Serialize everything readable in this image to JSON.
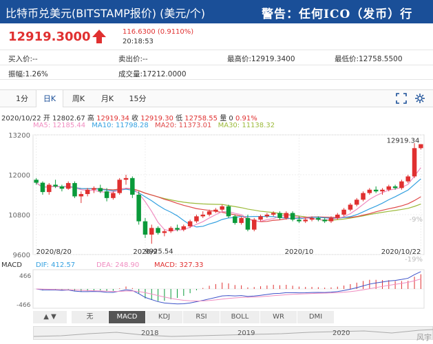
{
  "header": {
    "title": "比特币兑美元(BITSTAMP报价) (美元/个)",
    "warning": "警告：任何ICO（发币）行"
  },
  "quote": {
    "price": "12919.3000",
    "change": "116.6300 (0.9110%)",
    "time": "20:18:53"
  },
  "stats": {
    "buy": "买入价:--",
    "sell": "卖出价:--",
    "high": "最高价:12919.3400",
    "low": "最低价:12758.5500",
    "amplitude": "振幅:1.26%",
    "volume": "成交量:17212.0000"
  },
  "tabs": [
    "1分",
    "日K",
    "周K",
    "月K",
    "15分"
  ],
  "active_tab": "日K",
  "ohlc": {
    "date": "2020/10/22",
    "open_label": "开",
    "open": "12802.67",
    "high_label": "高",
    "high": "12919.34",
    "close_label": "收",
    "close": "12919.30",
    "low_label": "低",
    "low": "12758.55",
    "vol_label": "量",
    "vol": "0",
    "pct": "0.91%"
  },
  "ma": {
    "ma5": "MA5: 12185.44",
    "ma10": "MA10: 11798.28",
    "ma20": "MA20: 11373.01",
    "ma30": "MA30: 11138.32"
  },
  "macd": {
    "title": "MACD",
    "dif": "DIF: 412.57",
    "dea": "DEA: 248.90",
    "macd": "MACD: 327.33",
    "top": "466",
    "bottom": "-466"
  },
  "bottom_tabs": [
    "无",
    "MACD",
    "KDJ",
    "RSI",
    "BOLL",
    "WR",
    "DMI"
  ],
  "active_bottom": "MACD",
  "timeline_years": [
    "2018",
    "2019",
    "2020"
  ],
  "watermark": "风宇",
  "colors": {
    "up": "#e03030",
    "down": "#0a9a3a",
    "ma5": "#f08cc0",
    "ma10": "#33a0e0",
    "ma20": "#e04848",
    "ma30": "#9cba3a",
    "header": "#1a4f98"
  },
  "chart_data": {
    "type": "candlestick",
    "title": "",
    "ylabel": "",
    "ylim": [
      9600,
      13200
    ],
    "y_ticks": [
      "13200",
      "12000",
      "10800",
      "9600"
    ],
    "right_ticks": [
      "-9%",
      "-19%"
    ],
    "x_labels": [
      "2020/8/20",
      "2020/9",
      "2020/10",
      "2020/10/22"
    ],
    "annotations": [
      {
        "label": "12919.34",
        "value": 12919.34
      },
      {
        "label": "9925.54",
        "value": 9925.54
      }
    ],
    "candles": [
      [
        11850,
        11900,
        11700,
        11760
      ],
      [
        11760,
        11800,
        11400,
        11480
      ],
      [
        11480,
        11750,
        11400,
        11700
      ],
      [
        11700,
        11850,
        11600,
        11650
      ],
      [
        11650,
        11700,
        11500,
        11580
      ],
      [
        11580,
        11800,
        11550,
        11750
      ],
      [
        11750,
        11800,
        11300,
        11350
      ],
      [
        11350,
        11500,
        11150,
        11420
      ],
      [
        11420,
        11600,
        11350,
        11550
      ],
      [
        11550,
        11650,
        11450,
        11600
      ],
      [
        11600,
        11700,
        11450,
        11500
      ],
      [
        11500,
        11600,
        11200,
        11300
      ],
      [
        11300,
        11500,
        11250,
        11450
      ],
      [
        11450,
        11900,
        11400,
        11850
      ],
      [
        11850,
        12000,
        11700,
        11900
      ],
      [
        11900,
        11950,
        11300,
        11400
      ],
      [
        11400,
        11500,
        10500,
        10600
      ],
      [
        10600,
        10700,
        10100,
        10200
      ],
      [
        10200,
        10500,
        9925,
        10400
      ],
      [
        10400,
        10450,
        10200,
        10250
      ],
      [
        10250,
        10350,
        10150,
        10300
      ],
      [
        10300,
        10450,
        10250,
        10400
      ],
      [
        10400,
        10500,
        10300,
        10350
      ],
      [
        10350,
        10500,
        10300,
        10450
      ],
      [
        10450,
        10650,
        10400,
        10600
      ],
      [
        10600,
        10800,
        10550,
        10750
      ],
      [
        10750,
        10900,
        10700,
        10800
      ],
      [
        10800,
        10950,
        10750,
        10900
      ],
      [
        10900,
        11000,
        10850,
        10950
      ],
      [
        10950,
        11100,
        10900,
        11050
      ],
      [
        11050,
        11100,
        10700,
        10750
      ],
      [
        10750,
        10800,
        10500,
        10550
      ],
      [
        10550,
        10750,
        10500,
        10700
      ],
      [
        10700,
        10800,
        10300,
        10350
      ],
      [
        10350,
        10700,
        10300,
        10650
      ],
      [
        10650,
        10800,
        10600,
        10750
      ],
      [
        10750,
        10850,
        10700,
        10800
      ],
      [
        10800,
        10900,
        10750,
        10850
      ],
      [
        10850,
        10900,
        10650,
        10700
      ],
      [
        10700,
        10900,
        10650,
        10850
      ],
      [
        10850,
        10900,
        10600,
        10650
      ],
      [
        10650,
        10750,
        10550,
        10600
      ],
      [
        10600,
        10700,
        10550,
        10650
      ],
      [
        10650,
        10750,
        10600,
        10700
      ],
      [
        10700,
        10750,
        10600,
        10650
      ],
      [
        10650,
        10700,
        10550,
        10600
      ],
      [
        10600,
        10750,
        10550,
        10700
      ],
      [
        10700,
        10850,
        10650,
        10800
      ],
      [
        10800,
        11000,
        10750,
        10950
      ],
      [
        10950,
        11150,
        10900,
        11100
      ],
      [
        11100,
        11300,
        11050,
        11250
      ],
      [
        11250,
        11500,
        11200,
        11450
      ],
      [
        11450,
        11600,
        11400,
        11550
      ],
      [
        11550,
        11650,
        11450,
        11500
      ],
      [
        11500,
        11600,
        11400,
        11550
      ],
      [
        11550,
        11700,
        11500,
        11650
      ],
      [
        11650,
        11700,
        11550,
        11600
      ],
      [
        11600,
        11850,
        11550,
        11800
      ],
      [
        11800,
        12000,
        11750,
        11950
      ],
      [
        11950,
        12950,
        11900,
        12800
      ],
      [
        12800,
        12919,
        12758,
        12919
      ]
    ]
  }
}
